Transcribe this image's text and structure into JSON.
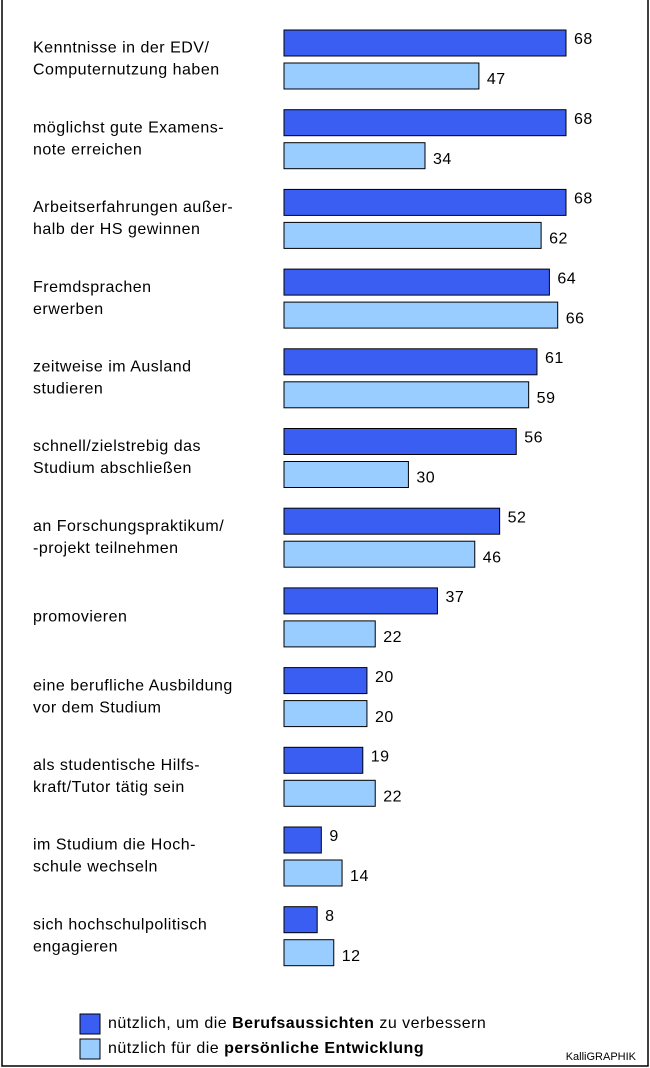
{
  "chart_data": {
    "type": "hbar",
    "categories": [
      [
        "Kenntnisse in der EDV/",
        "Computernutzung haben"
      ],
      [
        "möglichst gute Examens-",
        "note erreichen"
      ],
      [
        "Arbeitserfahrungen außer-",
        "halb der HS gewinnen"
      ],
      [
        "Fremdsprachen",
        "erwerben"
      ],
      [
        "zeitweise im Ausland",
        "studieren"
      ],
      [
        "schnell/zielstrebig das",
        "Studium abschließen"
      ],
      [
        "an Forschungspraktikum/",
        "-projekt teilnehmen"
      ],
      [
        "promovieren"
      ],
      [
        "eine berufliche Ausbildung",
        "vor dem Studium"
      ],
      [
        "als studentische Hilfs-",
        "kraft/Tutor tätig sein"
      ],
      [
        "im Studium die Hoch-",
        "schule wechseln"
      ],
      [
        "sich hochschulpolitisch",
        "engagieren"
      ]
    ],
    "series": [
      {
        "name": "nützlich, um die Berufsaussichten zu verbessern",
        "bold": "Berufsaussichten",
        "color": "#3a5ef2",
        "values": [
          68,
          68,
          68,
          64,
          61,
          56,
          52,
          37,
          20,
          19,
          9,
          8
        ]
      },
      {
        "name": "nützlich für die persönliche Entwicklung",
        "bold": "persönliche Entwicklung",
        "color": "#99ccff",
        "values": [
          47,
          34,
          62,
          66,
          59,
          30,
          46,
          22,
          20,
          22,
          14,
          12
        ]
      }
    ],
    "source": "KalliGRAPHIK"
  }
}
